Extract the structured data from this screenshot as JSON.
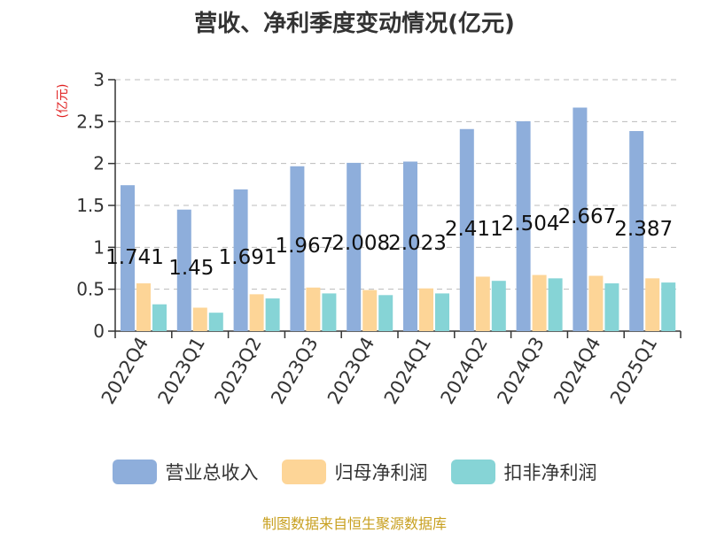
{
  "chart_data": {
    "type": "bar",
    "title": "营收、净利季度变动情况(亿元)",
    "ylabel": "(亿元)",
    "xlabel": "",
    "ylim": [
      0,
      3
    ],
    "yticks": [
      0,
      0.5,
      1,
      1.5,
      2,
      2.5,
      3
    ],
    "ytick_labels": [
      "0",
      "0.5",
      "1",
      "1.5",
      "2",
      "2.5",
      "3"
    ],
    "grid": true,
    "legend_position": "bottom",
    "categories": [
      "2022Q4",
      "2023Q1",
      "2023Q2",
      "2023Q3",
      "2023Q4",
      "2024Q1",
      "2024Q2",
      "2024Q3",
      "2024Q4",
      "2025Q1"
    ],
    "series": [
      {
        "name": "营业总收入",
        "color": "#8eaedb",
        "values": [
          1.741,
          1.45,
          1.691,
          1.967,
          2.008,
          2.023,
          2.411,
          2.504,
          2.667,
          2.387
        ],
        "labels": [
          "1.741",
          "1.45",
          "1.691",
          "1.967",
          "2.008",
          "2.023",
          "2.411",
          "2.504",
          "2.667",
          "2.387"
        ]
      },
      {
        "name": "归母净利润",
        "color": "#fdd597",
        "values": [
          0.57,
          0.28,
          0.44,
          0.52,
          0.49,
          0.51,
          0.65,
          0.67,
          0.66,
          0.63
        ]
      },
      {
        "name": "扣非净利润",
        "color": "#86d4d6",
        "values": [
          0.32,
          0.22,
          0.39,
          0.45,
          0.43,
          0.45,
          0.6,
          0.63,
          0.57,
          0.58
        ]
      }
    ]
  },
  "footer": {
    "source": "制图数据来自恒生聚源数据库"
  }
}
